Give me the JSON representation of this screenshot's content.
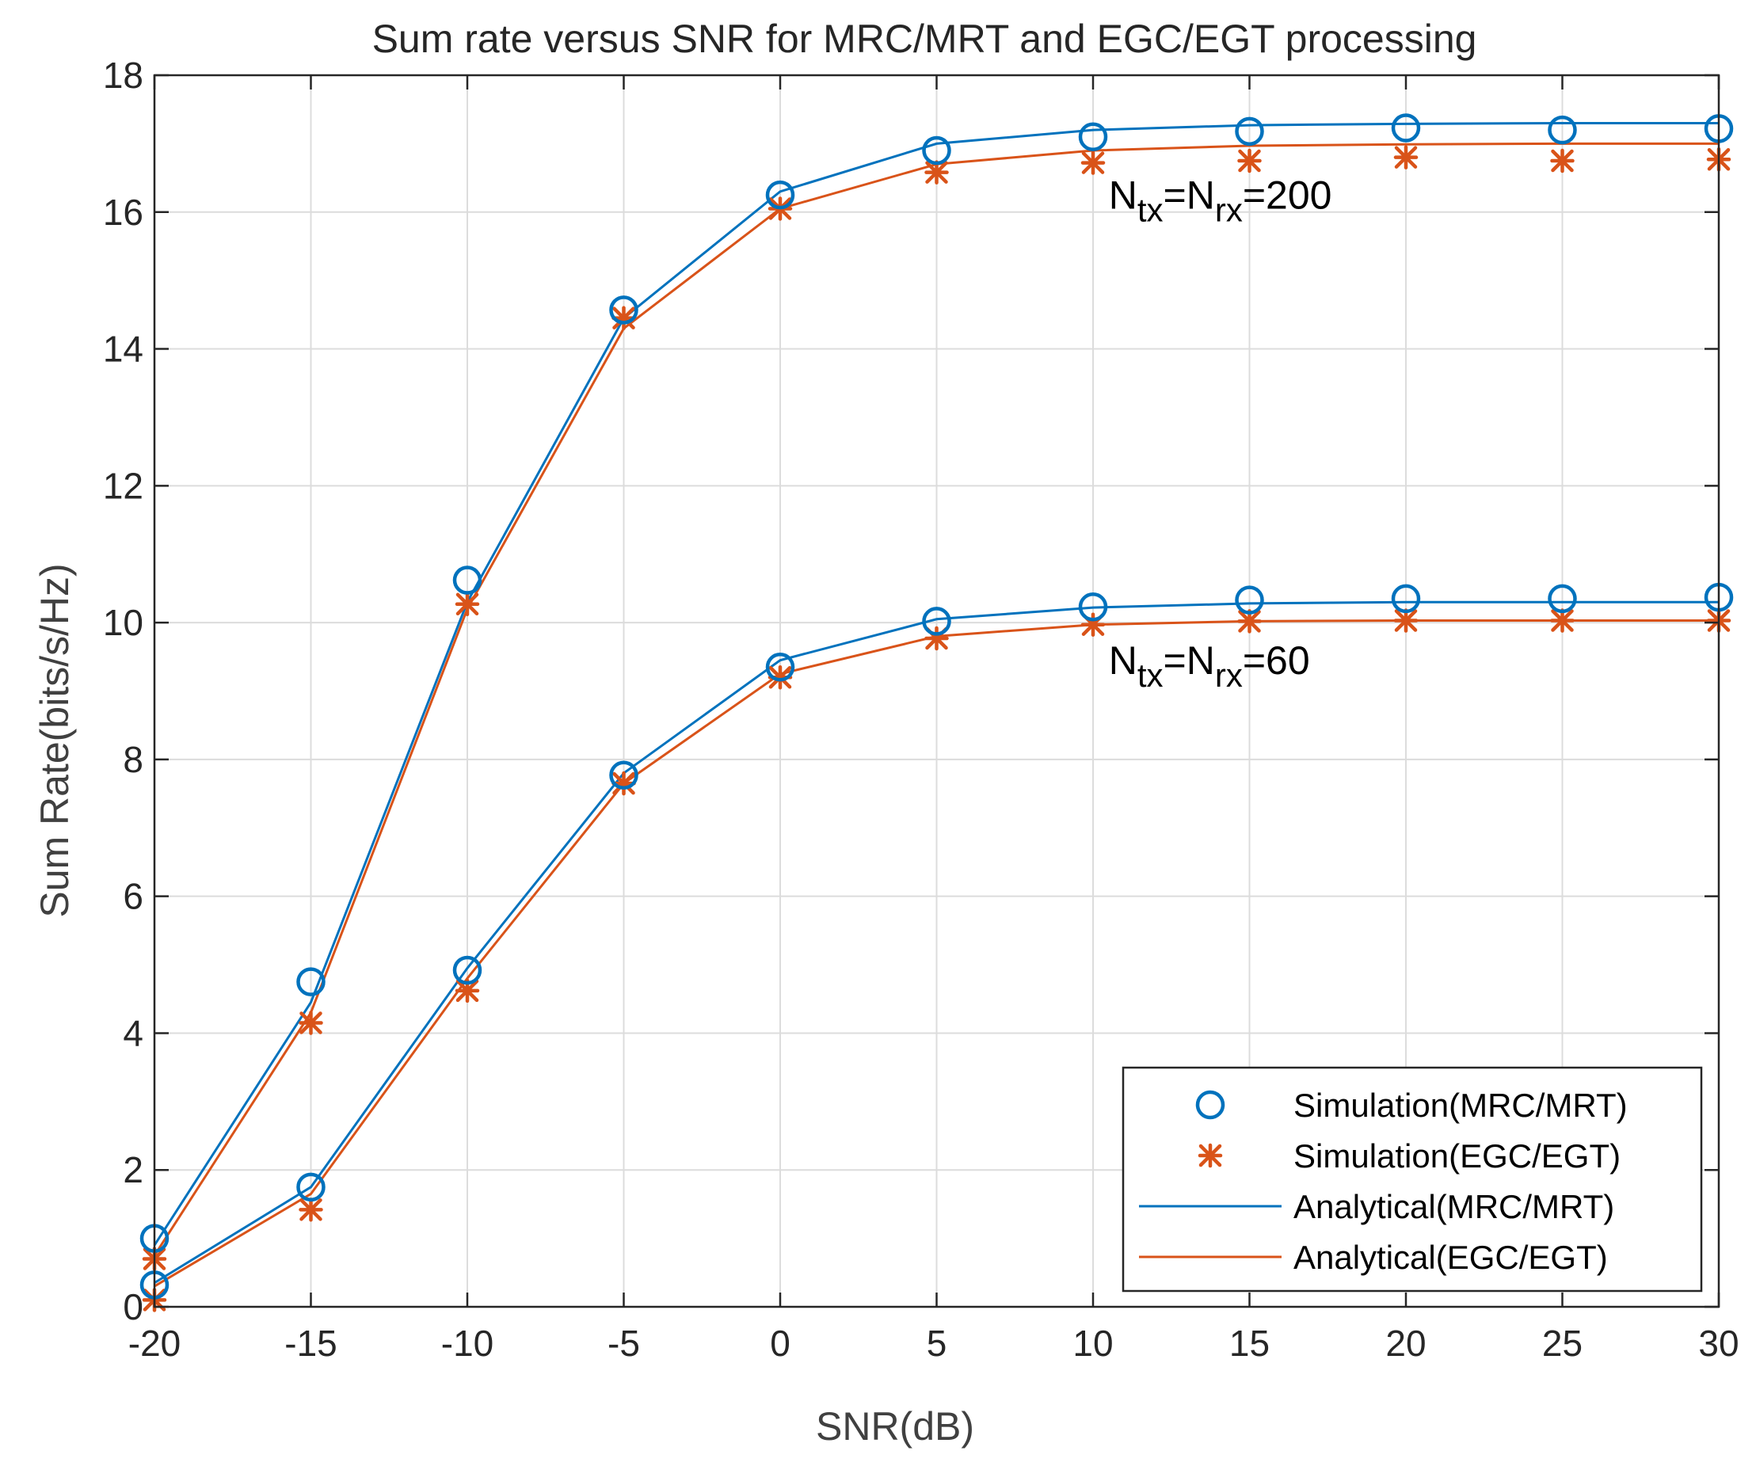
{
  "chart_data": {
    "type": "line",
    "title": "Sum rate versus SNR for MRC/MRT and EGC/EGT processing",
    "xlabel": "SNR(dB)",
    "ylabel": "Sum Rate(bits/s/Hz)",
    "xlim": [
      -20,
      30
    ],
    "ylim": [
      0,
      18
    ],
    "xticks": [
      -20,
      -15,
      -10,
      -5,
      0,
      5,
      10,
      15,
      20,
      25,
      30
    ],
    "yticks": [
      0,
      2,
      4,
      6,
      8,
      10,
      12,
      14,
      16,
      18
    ],
    "grid": true,
    "legend_position": "bottom-right",
    "colors": {
      "mrc": "#0072BD",
      "egc": "#D95319"
    },
    "x": [
      -20,
      -15,
      -10,
      -5,
      0,
      5,
      10,
      15,
      20,
      25,
      30
    ],
    "groups": [
      {
        "label": {
          "N": "N",
          "sub1": "tx",
          "eq1": "=N",
          "sub2": "rx",
          "val": "=200"
        },
        "label_at": {
          "x": 10.5,
          "y": 16.05
        },
        "sim_mrc": [
          1.0,
          4.75,
          10.62,
          14.57,
          16.25,
          16.9,
          17.1,
          17.18,
          17.23,
          17.2,
          17.22
        ],
        "sim_egc": [
          0.7,
          4.15,
          10.27,
          14.45,
          16.05,
          16.58,
          16.72,
          16.75,
          16.8,
          16.75,
          16.77
        ],
        "ana_mrc": [
          0.9,
          4.45,
          10.3,
          14.45,
          16.3,
          17.0,
          17.2,
          17.27,
          17.29,
          17.3,
          17.3
        ],
        "ana_egc": [
          0.75,
          4.3,
          10.2,
          14.3,
          16.05,
          16.7,
          16.9,
          16.97,
          16.99,
          17.0,
          17.0
        ]
      },
      {
        "label": {
          "N": "N",
          "sub1": "tx",
          "eq1": "=N",
          "sub2": "rx",
          "val": "=60"
        },
        "label_at": {
          "x": 10.5,
          "y": 9.25
        },
        "sim_mrc": [
          0.32,
          1.75,
          4.92,
          7.77,
          9.35,
          10.02,
          10.23,
          10.33,
          10.35,
          10.35,
          10.37
        ],
        "sim_egc": [
          0.1,
          1.42,
          4.62,
          7.65,
          9.2,
          9.77,
          9.97,
          10.02,
          10.03,
          10.03,
          10.03
        ],
        "ana_mrc": [
          0.35,
          1.75,
          4.95,
          7.8,
          9.45,
          10.05,
          10.22,
          10.28,
          10.3,
          10.3,
          10.3
        ],
        "ana_egc": [
          0.3,
          1.65,
          4.8,
          7.65,
          9.25,
          9.8,
          9.97,
          10.02,
          10.03,
          10.03,
          10.03
        ]
      }
    ],
    "legend": [
      {
        "label": "Simulation(MRC/MRT)",
        "kind": "circle",
        "series": "mrc"
      },
      {
        "label": "Simulation(EGC/EGT)",
        "kind": "star",
        "series": "egc"
      },
      {
        "label": "Analytical(MRC/MRT)",
        "kind": "line",
        "series": "mrc"
      },
      {
        "label": "Analytical(EGC/EGT)",
        "kind": "line",
        "series": "egc"
      }
    ]
  }
}
